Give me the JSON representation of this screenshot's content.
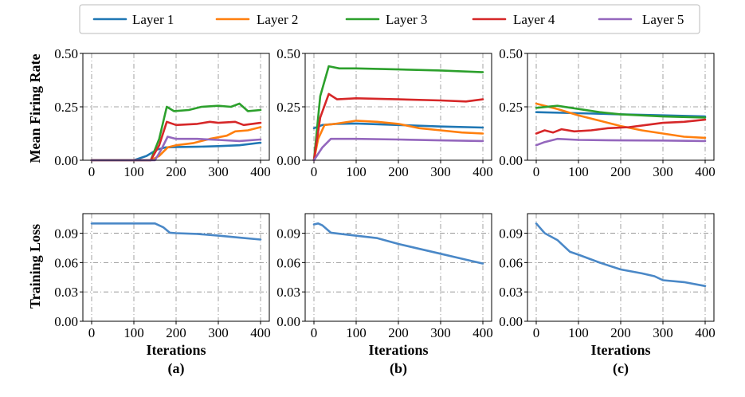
{
  "colors": {
    "layer1": "#1f77b4",
    "layer2": "#ff7f0e",
    "layer3": "#2ca02c",
    "layer4": "#d62728",
    "layer5": "#9467bd",
    "loss": "#4a88c7"
  },
  "legend": [
    "Layer 1",
    "Layer 2",
    "Layer 3",
    "Layer 4",
    "Layer 5"
  ],
  "labels": {
    "ylabel_top": "Mean Firing Rate",
    "ylabel_bottom": "Training Loss",
    "xlabel": "Iterations",
    "subplots": [
      "(a)",
      "(b)",
      "(c)"
    ]
  },
  "chart_data": [
    {
      "id": "a-firing",
      "type": "line",
      "xlim": [
        0,
        400
      ],
      "ylim": [
        0,
        0.5
      ],
      "xticks": [
        "0",
        "100",
        "200",
        "300",
        "400"
      ],
      "yticks": [
        "0.00",
        "0.25",
        "0.50"
      ],
      "series": [
        {
          "name": "Layer 1",
          "color_key": "layer1",
          "points": [
            [
              0,
              0
            ],
            [
              100,
              0
            ],
            [
              130,
              0.02
            ],
            [
              155,
              0.05
            ],
            [
              175,
              0.06
            ],
            [
              200,
              0.062
            ],
            [
              250,
              0.063
            ],
            [
              300,
              0.066
            ],
            [
              350,
              0.07
            ],
            [
              400,
              0.082
            ]
          ]
        },
        {
          "name": "Layer 2",
          "color_key": "layer2",
          "points": [
            [
              0,
              0
            ],
            [
              140,
              0
            ],
            [
              160,
              0.02
            ],
            [
              180,
              0.06
            ],
            [
              200,
              0.07
            ],
            [
              240,
              0.08
            ],
            [
              280,
              0.1
            ],
            [
              320,
              0.115
            ],
            [
              340,
              0.135
            ],
            [
              370,
              0.14
            ],
            [
              400,
              0.155
            ]
          ]
        },
        {
          "name": "Layer 3",
          "color_key": "layer3",
          "points": [
            [
              0,
              0
            ],
            [
              140,
              0
            ],
            [
              160,
              0.1
            ],
            [
              178,
              0.25
            ],
            [
              195,
              0.23
            ],
            [
              230,
              0.235
            ],
            [
              260,
              0.25
            ],
            [
              300,
              0.255
            ],
            [
              330,
              0.25
            ],
            [
              350,
              0.265
            ],
            [
              370,
              0.23
            ],
            [
              400,
              0.235
            ]
          ]
        },
        {
          "name": "Layer 4",
          "color_key": "layer4",
          "points": [
            [
              0,
              0
            ],
            [
              140,
              0
            ],
            [
              160,
              0.07
            ],
            [
              178,
              0.18
            ],
            [
              200,
              0.165
            ],
            [
              250,
              0.17
            ],
            [
              280,
              0.18
            ],
            [
              300,
              0.175
            ],
            [
              340,
              0.18
            ],
            [
              360,
              0.165
            ],
            [
              400,
              0.175
            ]
          ]
        },
        {
          "name": "Layer 5",
          "color_key": "layer5",
          "points": [
            [
              0,
              0
            ],
            [
              150,
              0
            ],
            [
              165,
              0.05
            ],
            [
              180,
              0.11
            ],
            [
              200,
              0.1
            ],
            [
              250,
              0.1
            ],
            [
              300,
              0.095
            ],
            [
              350,
              0.09
            ],
            [
              400,
              0.097
            ]
          ]
        }
      ]
    },
    {
      "id": "b-firing",
      "type": "line",
      "xlim": [
        0,
        400
      ],
      "ylim": [
        0,
        0.5
      ],
      "xticks": [
        "0",
        "100",
        "200",
        "300",
        "400"
      ],
      "yticks": [
        "0.00",
        "0.25",
        "0.50"
      ],
      "series": [
        {
          "name": "Layer 1",
          "color_key": "layer1",
          "points": [
            [
              0,
              0.15
            ],
            [
              20,
              0.165
            ],
            [
              50,
              0.17
            ],
            [
              100,
              0.172
            ],
            [
              200,
              0.165
            ],
            [
              300,
              0.158
            ],
            [
              400,
              0.153
            ]
          ]
        },
        {
          "name": "Layer 2",
          "color_key": "layer2",
          "points": [
            [
              0,
              0
            ],
            [
              10,
              0.1
            ],
            [
              25,
              0.165
            ],
            [
              50,
              0.17
            ],
            [
              100,
              0.185
            ],
            [
              150,
              0.18
            ],
            [
              200,
              0.17
            ],
            [
              250,
              0.15
            ],
            [
              300,
              0.14
            ],
            [
              350,
              0.13
            ],
            [
              400,
              0.125
            ]
          ]
        },
        {
          "name": "Layer 3",
          "color_key": "layer3",
          "points": [
            [
              0,
              0
            ],
            [
              15,
              0.3
            ],
            [
              35,
              0.44
            ],
            [
              60,
              0.43
            ],
            [
              100,
              0.43
            ],
            [
              200,
              0.425
            ],
            [
              300,
              0.42
            ],
            [
              400,
              0.412
            ]
          ]
        },
        {
          "name": "Layer 4",
          "color_key": "layer4",
          "points": [
            [
              0,
              0
            ],
            [
              15,
              0.2
            ],
            [
              35,
              0.31
            ],
            [
              55,
              0.285
            ],
            [
              100,
              0.29
            ],
            [
              200,
              0.285
            ],
            [
              300,
              0.28
            ],
            [
              360,
              0.275
            ],
            [
              400,
              0.285
            ]
          ]
        },
        {
          "name": "Layer 5",
          "color_key": "layer5",
          "points": [
            [
              0,
              0
            ],
            [
              20,
              0.06
            ],
            [
              40,
              0.1
            ],
            [
              100,
              0.1
            ],
            [
              200,
              0.097
            ],
            [
              300,
              0.093
            ],
            [
              400,
              0.09
            ]
          ]
        }
      ]
    },
    {
      "id": "c-firing",
      "type": "line",
      "xlim": [
        0,
        400
      ],
      "ylim": [
        0,
        0.5
      ],
      "xticks": [
        "0",
        "100",
        "200",
        "300",
        "400"
      ],
      "yticks": [
        "0.00",
        "0.25",
        "0.50"
      ],
      "series": [
        {
          "name": "Layer 1",
          "color_key": "layer1",
          "points": [
            [
              0,
              0.225
            ],
            [
              100,
              0.22
            ],
            [
              200,
              0.215
            ],
            [
              300,
              0.21
            ],
            [
              400,
              0.205
            ]
          ]
        },
        {
          "name": "Layer 2",
          "color_key": "layer2",
          "points": [
            [
              0,
              0.265
            ],
            [
              50,
              0.24
            ],
            [
              100,
              0.21
            ],
            [
              150,
              0.185
            ],
            [
              200,
              0.16
            ],
            [
              250,
              0.14
            ],
            [
              300,
              0.125
            ],
            [
              350,
              0.11
            ],
            [
              400,
              0.105
            ]
          ]
        },
        {
          "name": "Layer 3",
          "color_key": "layer3",
          "points": [
            [
              0,
              0.245
            ],
            [
              50,
              0.255
            ],
            [
              100,
              0.24
            ],
            [
              150,
              0.225
            ],
            [
              200,
              0.215
            ],
            [
              300,
              0.205
            ],
            [
              400,
              0.2
            ]
          ]
        },
        {
          "name": "Layer 4",
          "color_key": "layer4",
          "points": [
            [
              0,
              0.125
            ],
            [
              20,
              0.14
            ],
            [
              40,
              0.13
            ],
            [
              60,
              0.145
            ],
            [
              90,
              0.135
            ],
            [
              130,
              0.14
            ],
            [
              170,
              0.15
            ],
            [
              220,
              0.155
            ],
            [
              260,
              0.165
            ],
            [
              300,
              0.175
            ],
            [
              350,
              0.18
            ],
            [
              400,
              0.19
            ]
          ]
        },
        {
          "name": "Layer 5",
          "color_key": "layer5",
          "points": [
            [
              0,
              0.07
            ],
            [
              20,
              0.085
            ],
            [
              50,
              0.1
            ],
            [
              100,
              0.095
            ],
            [
              200,
              0.093
            ],
            [
              300,
              0.092
            ],
            [
              400,
              0.09
            ]
          ]
        }
      ]
    },
    {
      "id": "a-loss",
      "type": "line",
      "xlim": [
        0,
        400
      ],
      "ylim": [
        0,
        0.11
      ],
      "xticks": [
        "0",
        "100",
        "200",
        "300",
        "400"
      ],
      "yticks": [
        "0.00",
        "0.03",
        "0.06",
        "0.09"
      ],
      "series": [
        {
          "name": "Training Loss",
          "color_key": "loss",
          "points": [
            [
              0,
              0.1
            ],
            [
              100,
              0.1
            ],
            [
              150,
              0.1
            ],
            [
              170,
              0.096
            ],
            [
              185,
              0.0905
            ],
            [
              200,
              0.09
            ],
            [
              250,
              0.0893
            ],
            [
              300,
              0.0875
            ],
            [
              350,
              0.0855
            ],
            [
              400,
              0.0835
            ]
          ]
        }
      ]
    },
    {
      "id": "b-loss",
      "type": "line",
      "xlim": [
        0,
        400
      ],
      "ylim": [
        0,
        0.11
      ],
      "xticks": [
        "0",
        "100",
        "200",
        "300",
        "400"
      ],
      "yticks": [
        "0.00",
        "0.03",
        "0.06",
        "0.09"
      ],
      "series": [
        {
          "name": "Training Loss",
          "color_key": "loss",
          "points": [
            [
              0,
              0.099
            ],
            [
              10,
              0.1
            ],
            [
              20,
              0.098
            ],
            [
              40,
              0.0905
            ],
            [
              80,
              0.0885
            ],
            [
              150,
              0.085
            ],
            [
              200,
              0.079
            ],
            [
              250,
              0.074
            ],
            [
              300,
              0.069
            ],
            [
              350,
              0.064
            ],
            [
              400,
              0.059
            ]
          ]
        }
      ]
    },
    {
      "id": "c-loss",
      "type": "line",
      "xlim": [
        0,
        400
      ],
      "ylim": [
        0,
        0.11
      ],
      "xticks": [
        "0",
        "100",
        "200",
        "300",
        "400"
      ],
      "yticks": [
        "0.00",
        "0.03",
        "0.06",
        "0.09"
      ],
      "series": [
        {
          "name": "Training Loss",
          "color_key": "loss",
          "points": [
            [
              0,
              0.1
            ],
            [
              20,
              0.09
            ],
            [
              50,
              0.083
            ],
            [
              80,
              0.071
            ],
            [
              100,
              0.068
            ],
            [
              150,
              0.06
            ],
            [
              200,
              0.053
            ],
            [
              250,
              0.049
            ],
            [
              280,
              0.046
            ],
            [
              300,
              0.042
            ],
            [
              350,
              0.04
            ],
            [
              400,
              0.036
            ]
          ]
        }
      ]
    }
  ]
}
